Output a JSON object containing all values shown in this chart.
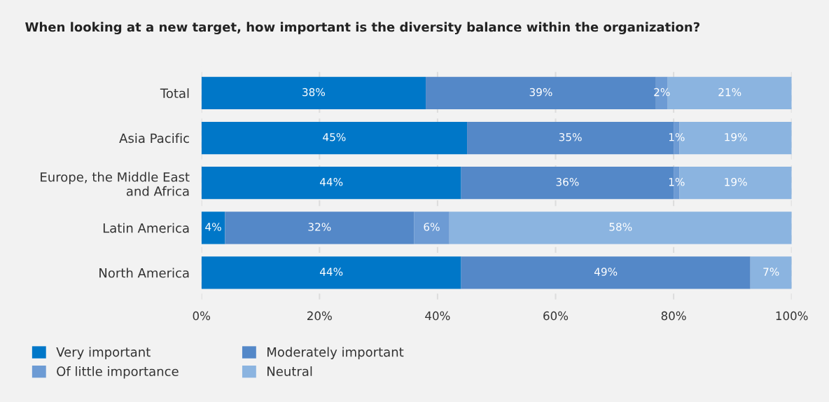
{
  "chart_data": {
    "type": "bar",
    "orientation": "horizontal",
    "stacked": true,
    "title": "When looking at a new target, how important is the diversity balance within the organization?",
    "categories": [
      "Total",
      "Asia Pacific",
      "Europe, the Middle East\nand Africa",
      "Latin America",
      "North America"
    ],
    "series": [
      {
        "name": "Very important",
        "color": "#0077c8",
        "values": [
          38,
          45,
          44,
          4,
          44
        ],
        "value_labels": [
          "38%",
          "45%",
          "44%",
          "4%",
          "44%"
        ]
      },
      {
        "name": "Moderately important",
        "color": "#5488c8",
        "values": [
          39,
          35,
          36,
          32,
          49
        ],
        "value_labels": [
          "39%",
          "35%",
          "36%",
          "32%",
          "49%"
        ]
      },
      {
        "name": "Of little importance",
        "color": "#6d9bd4",
        "values": [
          2,
          1,
          1,
          6,
          0
        ],
        "value_labels": [
          "2%",
          "1%",
          "1%",
          "6%",
          null
        ]
      },
      {
        "name": "Neutral",
        "color": "#8bb4e0",
        "values": [
          21,
          19,
          19,
          58,
          7
        ],
        "value_labels": [
          "21%",
          "19%",
          "19%",
          "58%",
          "7%"
        ]
      }
    ],
    "xlim": [
      0,
      100
    ],
    "xticks": [
      {
        "value": 0,
        "label": "0%"
      },
      {
        "value": 20,
        "label": "20%"
      },
      {
        "value": 40,
        "label": "40%"
      },
      {
        "value": 60,
        "label": "60%"
      },
      {
        "value": 80,
        "label": "80%"
      },
      {
        "value": 100,
        "label": "100%"
      }
    ],
    "grid": "x",
    "legend": "bottom left"
  }
}
